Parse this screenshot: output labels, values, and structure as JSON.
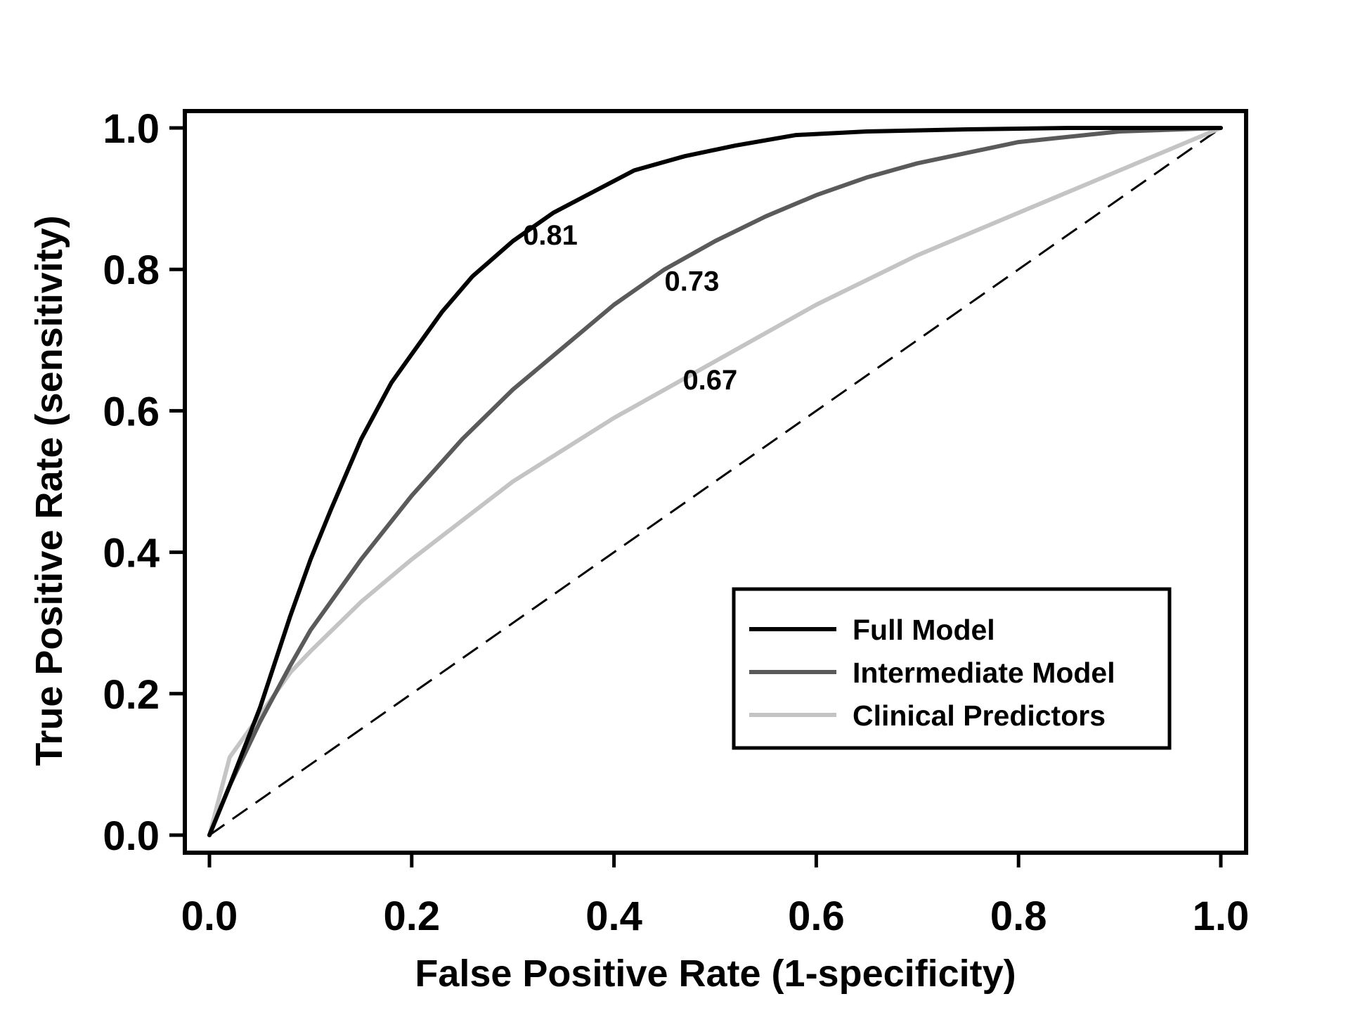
{
  "chart_data": {
    "type": "line",
    "xlabel": "False Positive Rate (1-specificity)",
    "ylabel": "True Positive Rate (sensitivity)",
    "xlim": [
      0,
      1
    ],
    "ylim": [
      0,
      1
    ],
    "x_ticks": [
      "0.0",
      "0.2",
      "0.4",
      "0.6",
      "0.8",
      "1.0"
    ],
    "y_ticks": [
      "0.0",
      "0.2",
      "0.4",
      "0.6",
      "0.8",
      "1.0"
    ],
    "grid": false,
    "legend_position": "bottom-right",
    "series": [
      {
        "name": "Full Model",
        "color": "#000000",
        "x": [
          0,
          0.02,
          0.05,
          0.08,
          0.1,
          0.12,
          0.15,
          0.18,
          0.2,
          0.23,
          0.26,
          0.3,
          0.34,
          0.38,
          0.42,
          0.47,
          0.52,
          0.58,
          0.65,
          0.75,
          0.85,
          1.0
        ],
        "y": [
          0,
          0.07,
          0.18,
          0.31,
          0.39,
          0.46,
          0.56,
          0.64,
          0.68,
          0.74,
          0.79,
          0.84,
          0.88,
          0.91,
          0.94,
          0.96,
          0.975,
          0.99,
          0.995,
          0.998,
          1.0,
          1.0
        ]
      },
      {
        "name": "Intermediate Model",
        "color": "#5a5a5a",
        "x": [
          0,
          0.02,
          0.05,
          0.08,
          0.1,
          0.15,
          0.2,
          0.25,
          0.3,
          0.35,
          0.4,
          0.45,
          0.5,
          0.55,
          0.6,
          0.65,
          0.7,
          0.8,
          0.9,
          1.0
        ],
        "y": [
          0,
          0.07,
          0.16,
          0.24,
          0.29,
          0.39,
          0.48,
          0.56,
          0.63,
          0.69,
          0.75,
          0.8,
          0.84,
          0.875,
          0.905,
          0.93,
          0.95,
          0.98,
          0.995,
          1.0
        ]
      },
      {
        "name": "Clinical Predictors",
        "color": "#c4c4c4",
        "x": [
          0,
          0.02,
          0.05,
          0.08,
          0.1,
          0.15,
          0.2,
          0.3,
          0.4,
          0.5,
          0.6,
          0.7,
          0.8,
          0.9,
          1.0
        ],
        "y": [
          0,
          0.11,
          0.17,
          0.23,
          0.26,
          0.33,
          0.39,
          0.5,
          0.59,
          0.67,
          0.75,
          0.82,
          0.88,
          0.94,
          1.0
        ]
      },
      {
        "name": "",
        "color": "#000000",
        "dashed": true,
        "x": [
          0,
          1
        ],
        "y": [
          0,
          1
        ]
      }
    ],
    "annotations": [
      {
        "text": "0.81",
        "x": 0.31,
        "y": 0.835
      },
      {
        "text": "0.73",
        "x": 0.45,
        "y": 0.77
      },
      {
        "text": "0.67",
        "x": 0.468,
        "y": 0.63
      }
    ]
  }
}
